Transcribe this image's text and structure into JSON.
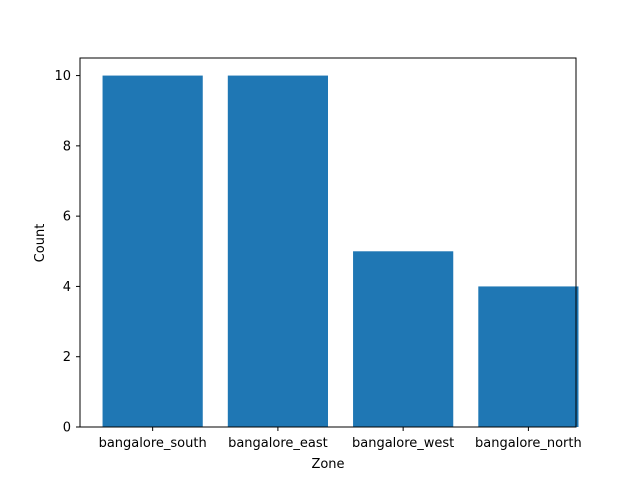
{
  "chart_data": {
    "type": "bar",
    "title": "",
    "xlabel": "Zone",
    "ylabel": "Count",
    "categories": [
      "bangalore_south",
      "bangalore_east",
      "bangalore_west",
      "bangalore_north"
    ],
    "values": [
      10,
      10,
      5,
      4
    ],
    "ylim": [
      0,
      10.5
    ],
    "yticks": [
      0,
      2,
      4,
      6,
      8,
      10
    ],
    "grid": false,
    "legend": "none",
    "bar_color": "#1f77b4"
  }
}
